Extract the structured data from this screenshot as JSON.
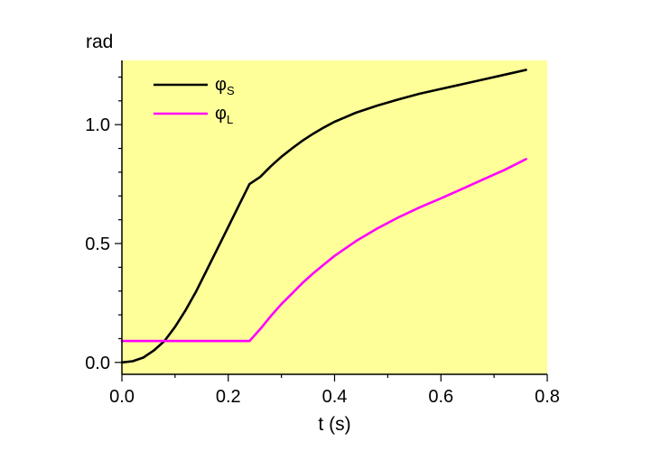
{
  "chart_data": {
    "type": "line",
    "xlabel": "t (s)",
    "ylabel": "rad",
    "xlim": [
      0.0,
      0.8
    ],
    "ylim": [
      -0.05,
      1.27
    ],
    "x_ticks": [
      "0.0",
      "0.2",
      "0.4",
      "0.6",
      "0.8"
    ],
    "y_ticks": [
      "0.0",
      "0.5",
      "1.0"
    ],
    "plot_background": "#ffff99",
    "grid": false,
    "legend_position": "top-left",
    "series": [
      {
        "name_main": "φ",
        "name_sub": "S",
        "color": "#000000",
        "x": [
          0.0,
          0.02,
          0.04,
          0.06,
          0.08,
          0.1,
          0.12,
          0.14,
          0.16,
          0.18,
          0.2,
          0.22,
          0.24,
          0.26,
          0.28,
          0.3,
          0.32,
          0.34,
          0.36,
          0.38,
          0.4,
          0.44,
          0.48,
          0.52,
          0.56,
          0.6,
          0.64,
          0.68,
          0.72,
          0.76
        ],
        "y": [
          0.0,
          0.005,
          0.02,
          0.05,
          0.09,
          0.15,
          0.22,
          0.3,
          0.39,
          0.48,
          0.57,
          0.66,
          0.75,
          0.78,
          0.825,
          0.865,
          0.9,
          0.933,
          0.962,
          0.988,
          1.012,
          1.05,
          1.08,
          1.106,
          1.13,
          1.15,
          1.17,
          1.19,
          1.21,
          1.23
        ]
      },
      {
        "name_main": "φ",
        "name_sub": "L",
        "color": "#ff00ff",
        "x": [
          0.0,
          0.05,
          0.1,
          0.15,
          0.2,
          0.24,
          0.26,
          0.28,
          0.3,
          0.32,
          0.34,
          0.36,
          0.38,
          0.4,
          0.44,
          0.48,
          0.52,
          0.56,
          0.6,
          0.64,
          0.68,
          0.72,
          0.76
        ],
        "y": [
          0.09,
          0.09,
          0.09,
          0.09,
          0.09,
          0.09,
          0.14,
          0.195,
          0.245,
          0.29,
          0.335,
          0.375,
          0.412,
          0.448,
          0.51,
          0.563,
          0.61,
          0.652,
          0.69,
          0.73,
          0.77,
          0.81,
          0.855
        ]
      }
    ]
  }
}
